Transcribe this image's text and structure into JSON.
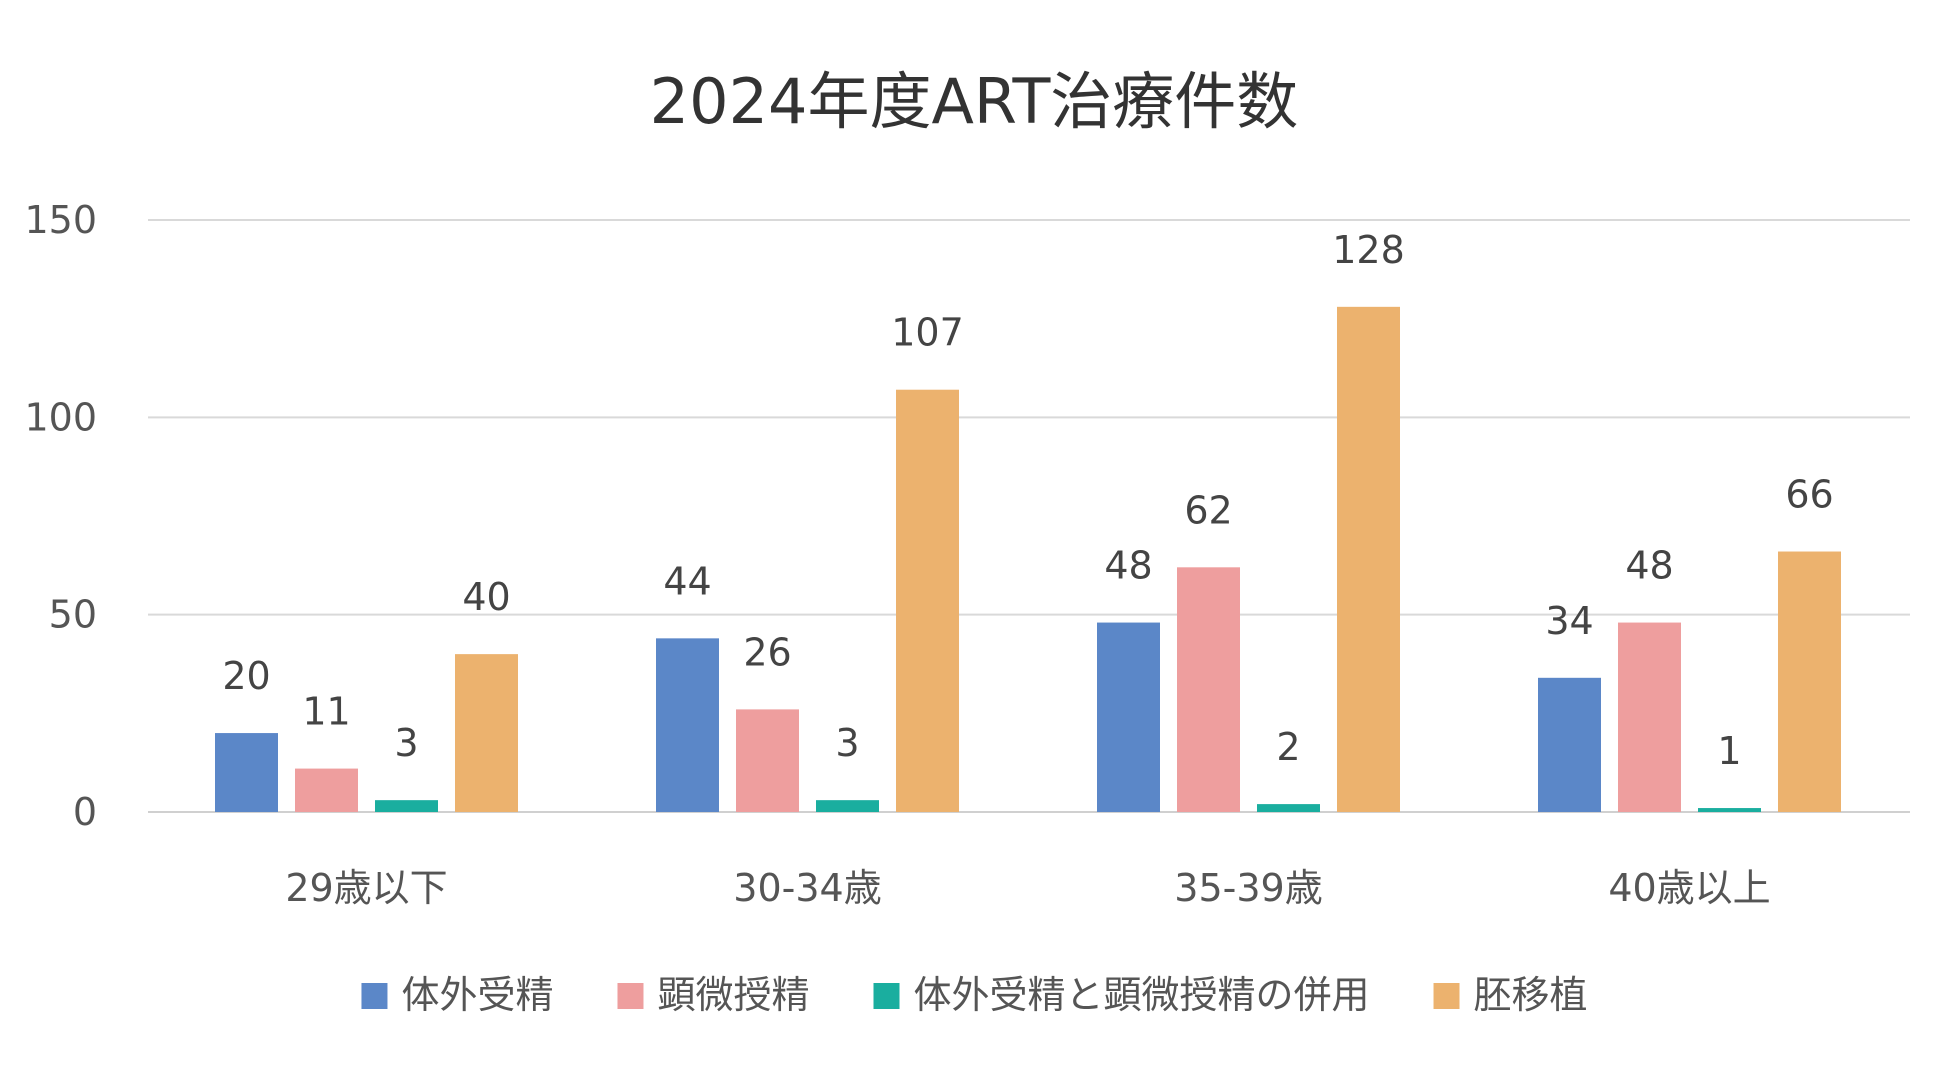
{
  "chart_data": {
    "type": "bar",
    "title": "2024年度ART治療件数",
    "categories": [
      "29歳以下",
      "30-34歳",
      "35-39歳",
      "40歳以上"
    ],
    "series": [
      {
        "name": "体外受精",
        "color": "#5B87C8",
        "values": [
          20,
          44,
          48,
          34
        ]
      },
      {
        "name": "顕微授精",
        "color": "#EE9E9E",
        "values": [
          11,
          26,
          62,
          48
        ]
      },
      {
        "name": "体外受精と顕微授精の併用",
        "color": "#1AAE9F",
        "values": [
          3,
          3,
          2,
          1
        ]
      },
      {
        "name": "胚移植",
        "color": "#ECB26E",
        "values": [
          40,
          107,
          128,
          66
        ]
      }
    ],
    "ylim": [
      0,
      150
    ],
    "yticks": [
      0,
      50,
      100,
      150
    ],
    "grid": true,
    "legend_position": "bottom",
    "data_labels": true
  }
}
